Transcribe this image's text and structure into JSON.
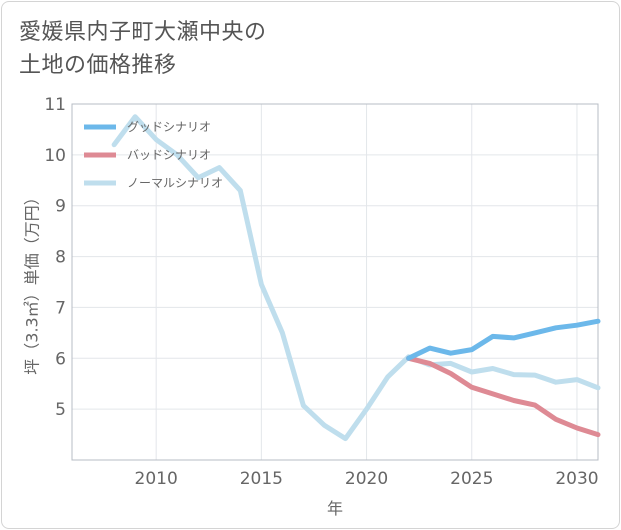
{
  "title_lines": [
    "愛媛県内子町大瀬中央の",
    "土地の価格推移"
  ],
  "chart_data": {
    "type": "line",
    "title": "愛媛県内子町大瀬中央の土地の価格推移",
    "xlabel": "年",
    "ylabel": "坪（3.3㎡）単価（万円）",
    "xlim": [
      2006,
      2031
    ],
    "ylim": [
      4,
      11
    ],
    "xticks": [
      2010,
      2015,
      2020,
      2025,
      2030
    ],
    "yticks": [
      5,
      6,
      7,
      8,
      9,
      10,
      11
    ],
    "grid": true,
    "legend_position": "top-left",
    "series": [
      {
        "name": "グッドシナリオ",
        "color": "#6cb8ea",
        "x": [
          2022,
          2023,
          2024,
          2025,
          2026,
          2027,
          2028,
          2029,
          2030,
          2031
        ],
        "y": [
          6.0,
          6.2,
          6.1,
          6.17,
          6.43,
          6.4,
          6.5,
          6.6,
          6.65,
          6.73
        ]
      },
      {
        "name": "バッドシナリオ",
        "color": "#de8a94",
        "x": [
          2022,
          2023,
          2024,
          2025,
          2026,
          2027,
          2028,
          2029,
          2030,
          2031
        ],
        "y": [
          6.0,
          5.9,
          5.7,
          5.43,
          5.3,
          5.17,
          5.08,
          4.8,
          4.63,
          4.5
        ]
      },
      {
        "name": "ノーマルシナリオ",
        "color": "#bfdeed",
        "x": [
          2008,
          2009,
          2010,
          2011,
          2012,
          2013,
          2014,
          2015,
          2016,
          2017,
          2018,
          2019,
          2020,
          2021,
          2022,
          2023,
          2024,
          2025,
          2026,
          2027,
          2028,
          2029,
          2030,
          2031
        ],
        "y": [
          10.2,
          10.75,
          10.3,
          10.0,
          9.55,
          9.75,
          9.3,
          7.45,
          6.5,
          5.07,
          4.68,
          4.42,
          5.0,
          5.63,
          6.03,
          5.87,
          5.9,
          5.73,
          5.8,
          5.68,
          5.67,
          5.53,
          5.58,
          5.42
        ]
      }
    ]
  }
}
